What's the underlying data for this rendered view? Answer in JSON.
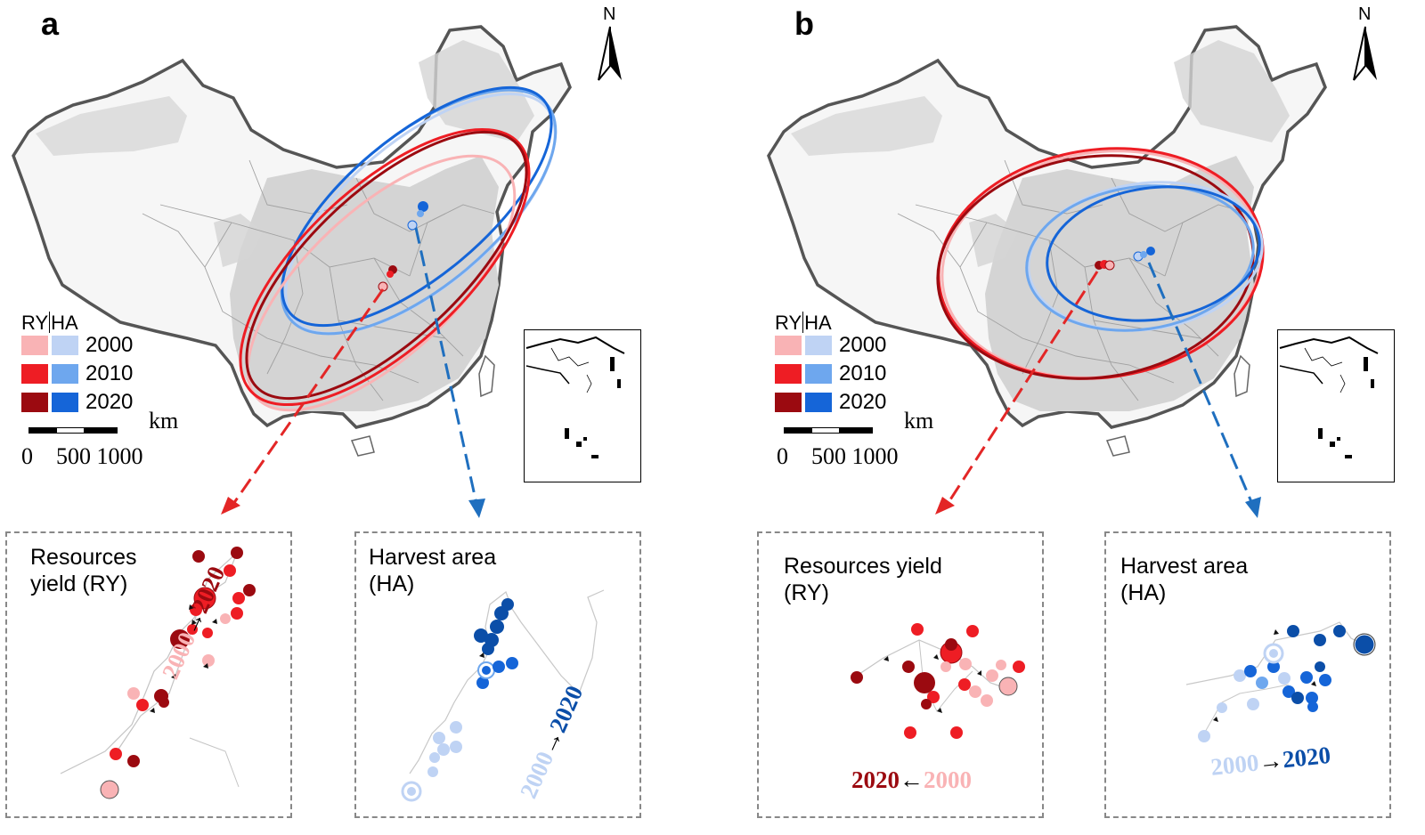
{
  "panels": [
    {
      "letter": "a",
      "north": "N",
      "legend": {
        "ry_label": "RY",
        "ha_label": "HA",
        "rows": [
          {
            "year": "2000",
            "ry_color": "#f9b3b5",
            "ha_color": "#bfd3f4"
          },
          {
            "year": "2010",
            "ry_color": "#ee1d24",
            "ha_color": "#6ea7ee"
          },
          {
            "year": "2020",
            "ry_color": "#9b0a10",
            "ha_color": "#1565d8"
          }
        ]
      },
      "scale": {
        "unit": "km",
        "ticks": "0    500 1000"
      },
      "zoom_ry": {
        "title": "Resources\nyield (RY)",
        "from": "2000",
        "arrow": "→",
        "to": "2020"
      },
      "zoom_ha": {
        "title": "Harvest area\n(HA)",
        "from": "2000",
        "arrow": "→",
        "to": "2020"
      }
    },
    {
      "letter": "b",
      "north": "N",
      "legend": {
        "ry_label": "RY",
        "ha_label": "HA",
        "rows": [
          {
            "year": "2000",
            "ry_color": "#f9b3b5",
            "ha_color": "#bfd3f4"
          },
          {
            "year": "2010",
            "ry_color": "#ee1d24",
            "ha_color": "#6ea7ee"
          },
          {
            "year": "2020",
            "ry_color": "#9b0a10",
            "ha_color": "#1565d8"
          }
        ]
      },
      "scale": {
        "unit": "km",
        "ticks": "0    500 1000"
      },
      "zoom_ry": {
        "title": "Resources yield\n(RY)",
        "from": "2020",
        "arrow": "←",
        "to": "2000"
      },
      "zoom_ha": {
        "title": "Harvest area\n(HA)",
        "from": "2000",
        "arrow": "→",
        "to": "2020"
      }
    }
  ],
  "colors": {
    "ry_2000": "#f9b3b5",
    "ry_2010": "#ee1d24",
    "ry_2020": "#9b0a10",
    "ha_2000": "#bfd3f4",
    "ha_2010": "#6ea7ee",
    "ha_2020": "#1565d8",
    "ha_dark": "#0b4ea8",
    "arrow_red": "#e32626",
    "arrow_blue": "#1f6fbf"
  }
}
